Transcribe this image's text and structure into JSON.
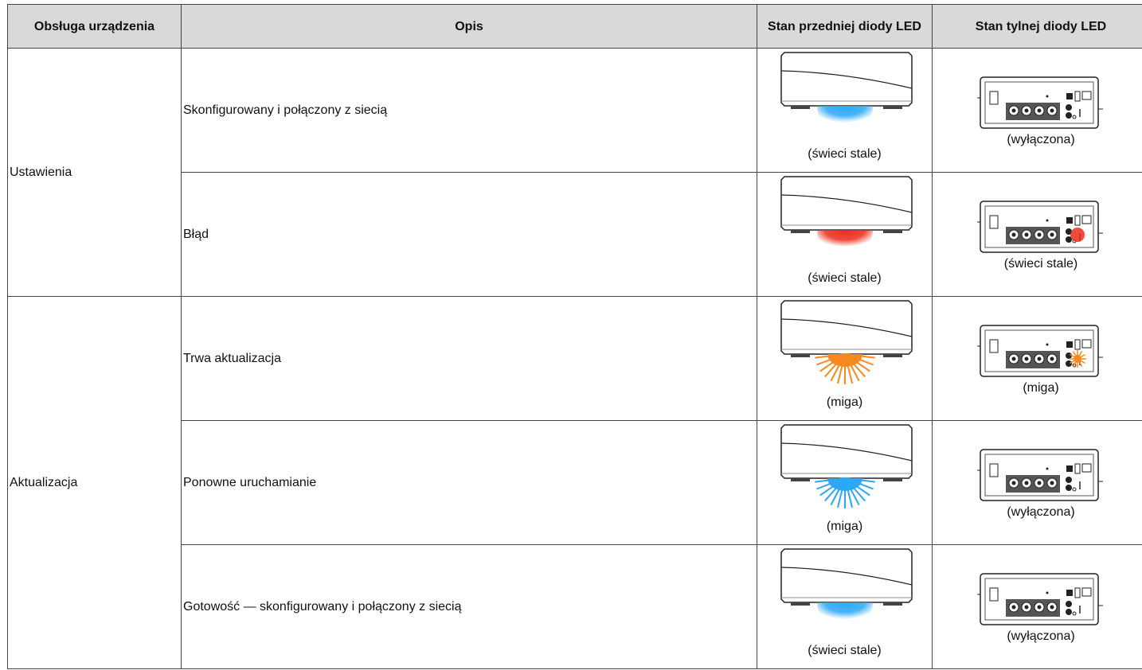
{
  "table": {
    "headers": [
      "Obsługa urządzenia",
      "Opis",
      "Stan przedniej diody LED",
      "Stan tylnej diody LED"
    ],
    "groups": [
      {
        "label": "Ustawienia",
        "rows": [
          {
            "description": "Skonfigurowany i połączony z siecią",
            "front": "(świeci stale)",
            "rear": "(wyłączona)"
          },
          {
            "description": "Błąd",
            "front": "(świeci stale)",
            "rear": "(świeci stale)"
          }
        ]
      },
      {
        "label": "Aktualizacja",
        "rows": [
          {
            "description": "Trwa aktualizacja",
            "front": "(miga)",
            "rear": "(miga)"
          },
          {
            "description": "Ponowne uruchamianie",
            "front": "(miga)",
            "rear": "(wyłączona)"
          },
          {
            "description": "Gotowość — skonfigurowany i połączony z siecią",
            "front": "(świeci stale)",
            "rear": "(wyłączona)"
          }
        ]
      }
    ]
  }
}
